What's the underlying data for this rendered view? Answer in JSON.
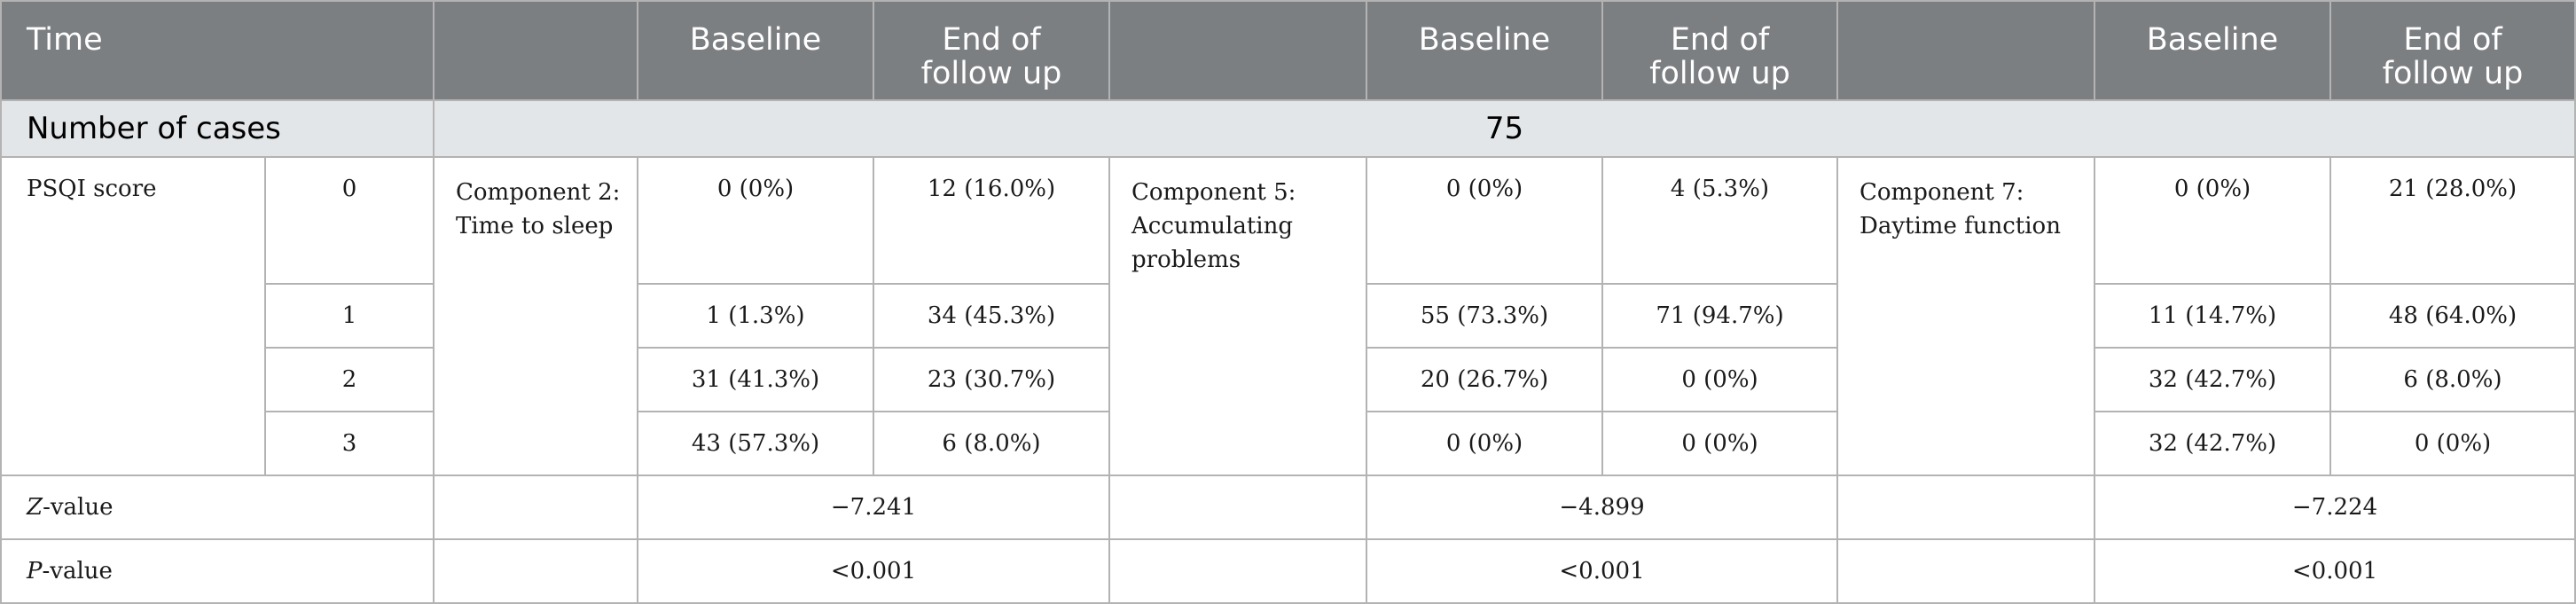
{
  "header": {
    "time": "Time",
    "baseline": "Baseline",
    "end_line1": "End of",
    "end_line2": "follow up"
  },
  "cases": {
    "label": "Number of cases",
    "value": "75"
  },
  "psqi_label": "PSQI score",
  "components": [
    {
      "line1": "Component 2:",
      "line2": "Time to sleep"
    },
    {
      "line1": "Component 5:",
      "line2": "Accumulating",
      "line3": "problems"
    },
    {
      "line1": "Component 7:",
      "line2": "Daytime function"
    }
  ],
  "rows": [
    {
      "score": "0",
      "cells": [
        "0 (0%)",
        "12 (16.0%)",
        "0 (0%)",
        "4 (5.3%)",
        "0 (0%)",
        "21 (28.0%)"
      ]
    },
    {
      "score": "1",
      "cells": [
        "1 (1.3%)",
        "34 (45.3%)",
        "55 (73.3%)",
        "71 (94.7%)",
        "11 (14.7%)",
        "48 (64.0%)"
      ]
    },
    {
      "score": "2",
      "cells": [
        "31 (41.3%)",
        "23 (30.7%)",
        "20 (26.7%)",
        "0 (0%)",
        "32 (42.7%)",
        "6 (8.0%)"
      ]
    },
    {
      "score": "3",
      "cells": [
        "43 (57.3%)",
        "6 (8.0%)",
        "0 (0%)",
        "0 (0%)",
        "32 (42.7%)",
        "0 (0%)"
      ]
    }
  ],
  "z": {
    "prefix": "Z",
    "suffix": "-value",
    "values": [
      "−7.241",
      "−4.899",
      "−7.224"
    ]
  },
  "p": {
    "prefix": "P",
    "suffix": "-value",
    "values": [
      "<0.001",
      "<0.001",
      "<0.001"
    ]
  }
}
